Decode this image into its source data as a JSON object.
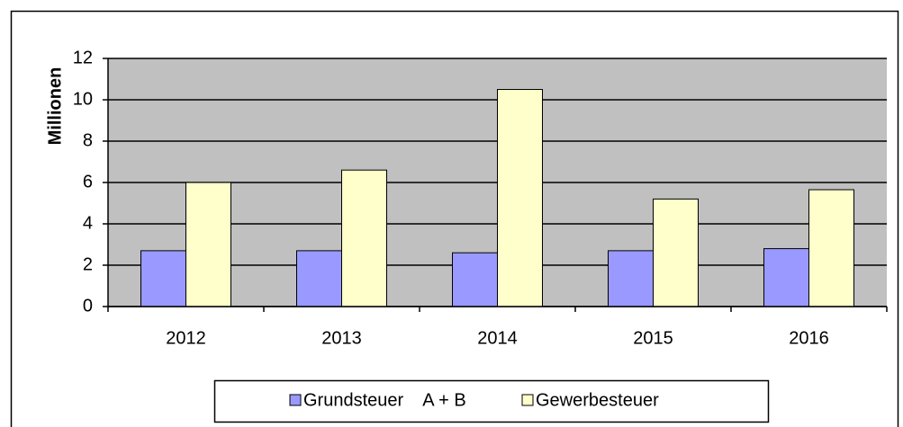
{
  "chart_data": {
    "type": "bar",
    "y_label": "Millionen",
    "categories": [
      "2012",
      "2013",
      "2014",
      "2015",
      "2016"
    ],
    "series": [
      {
        "name": "Grundsteuer    A + B",
        "color": "#9999ff",
        "values": [
          2.7,
          2.7,
          2.6,
          2.7,
          2.8
        ]
      },
      {
        "name": "Gewerbesteuer",
        "color": "#ffffcc",
        "values": [
          6.0,
          6.6,
          10.5,
          5.2,
          5.65
        ]
      }
    ],
    "ylim": [
      0,
      12
    ],
    "yticks": [
      0,
      2,
      4,
      6,
      8,
      10,
      12
    ],
    "grid": true,
    "legend": "bottom"
  }
}
